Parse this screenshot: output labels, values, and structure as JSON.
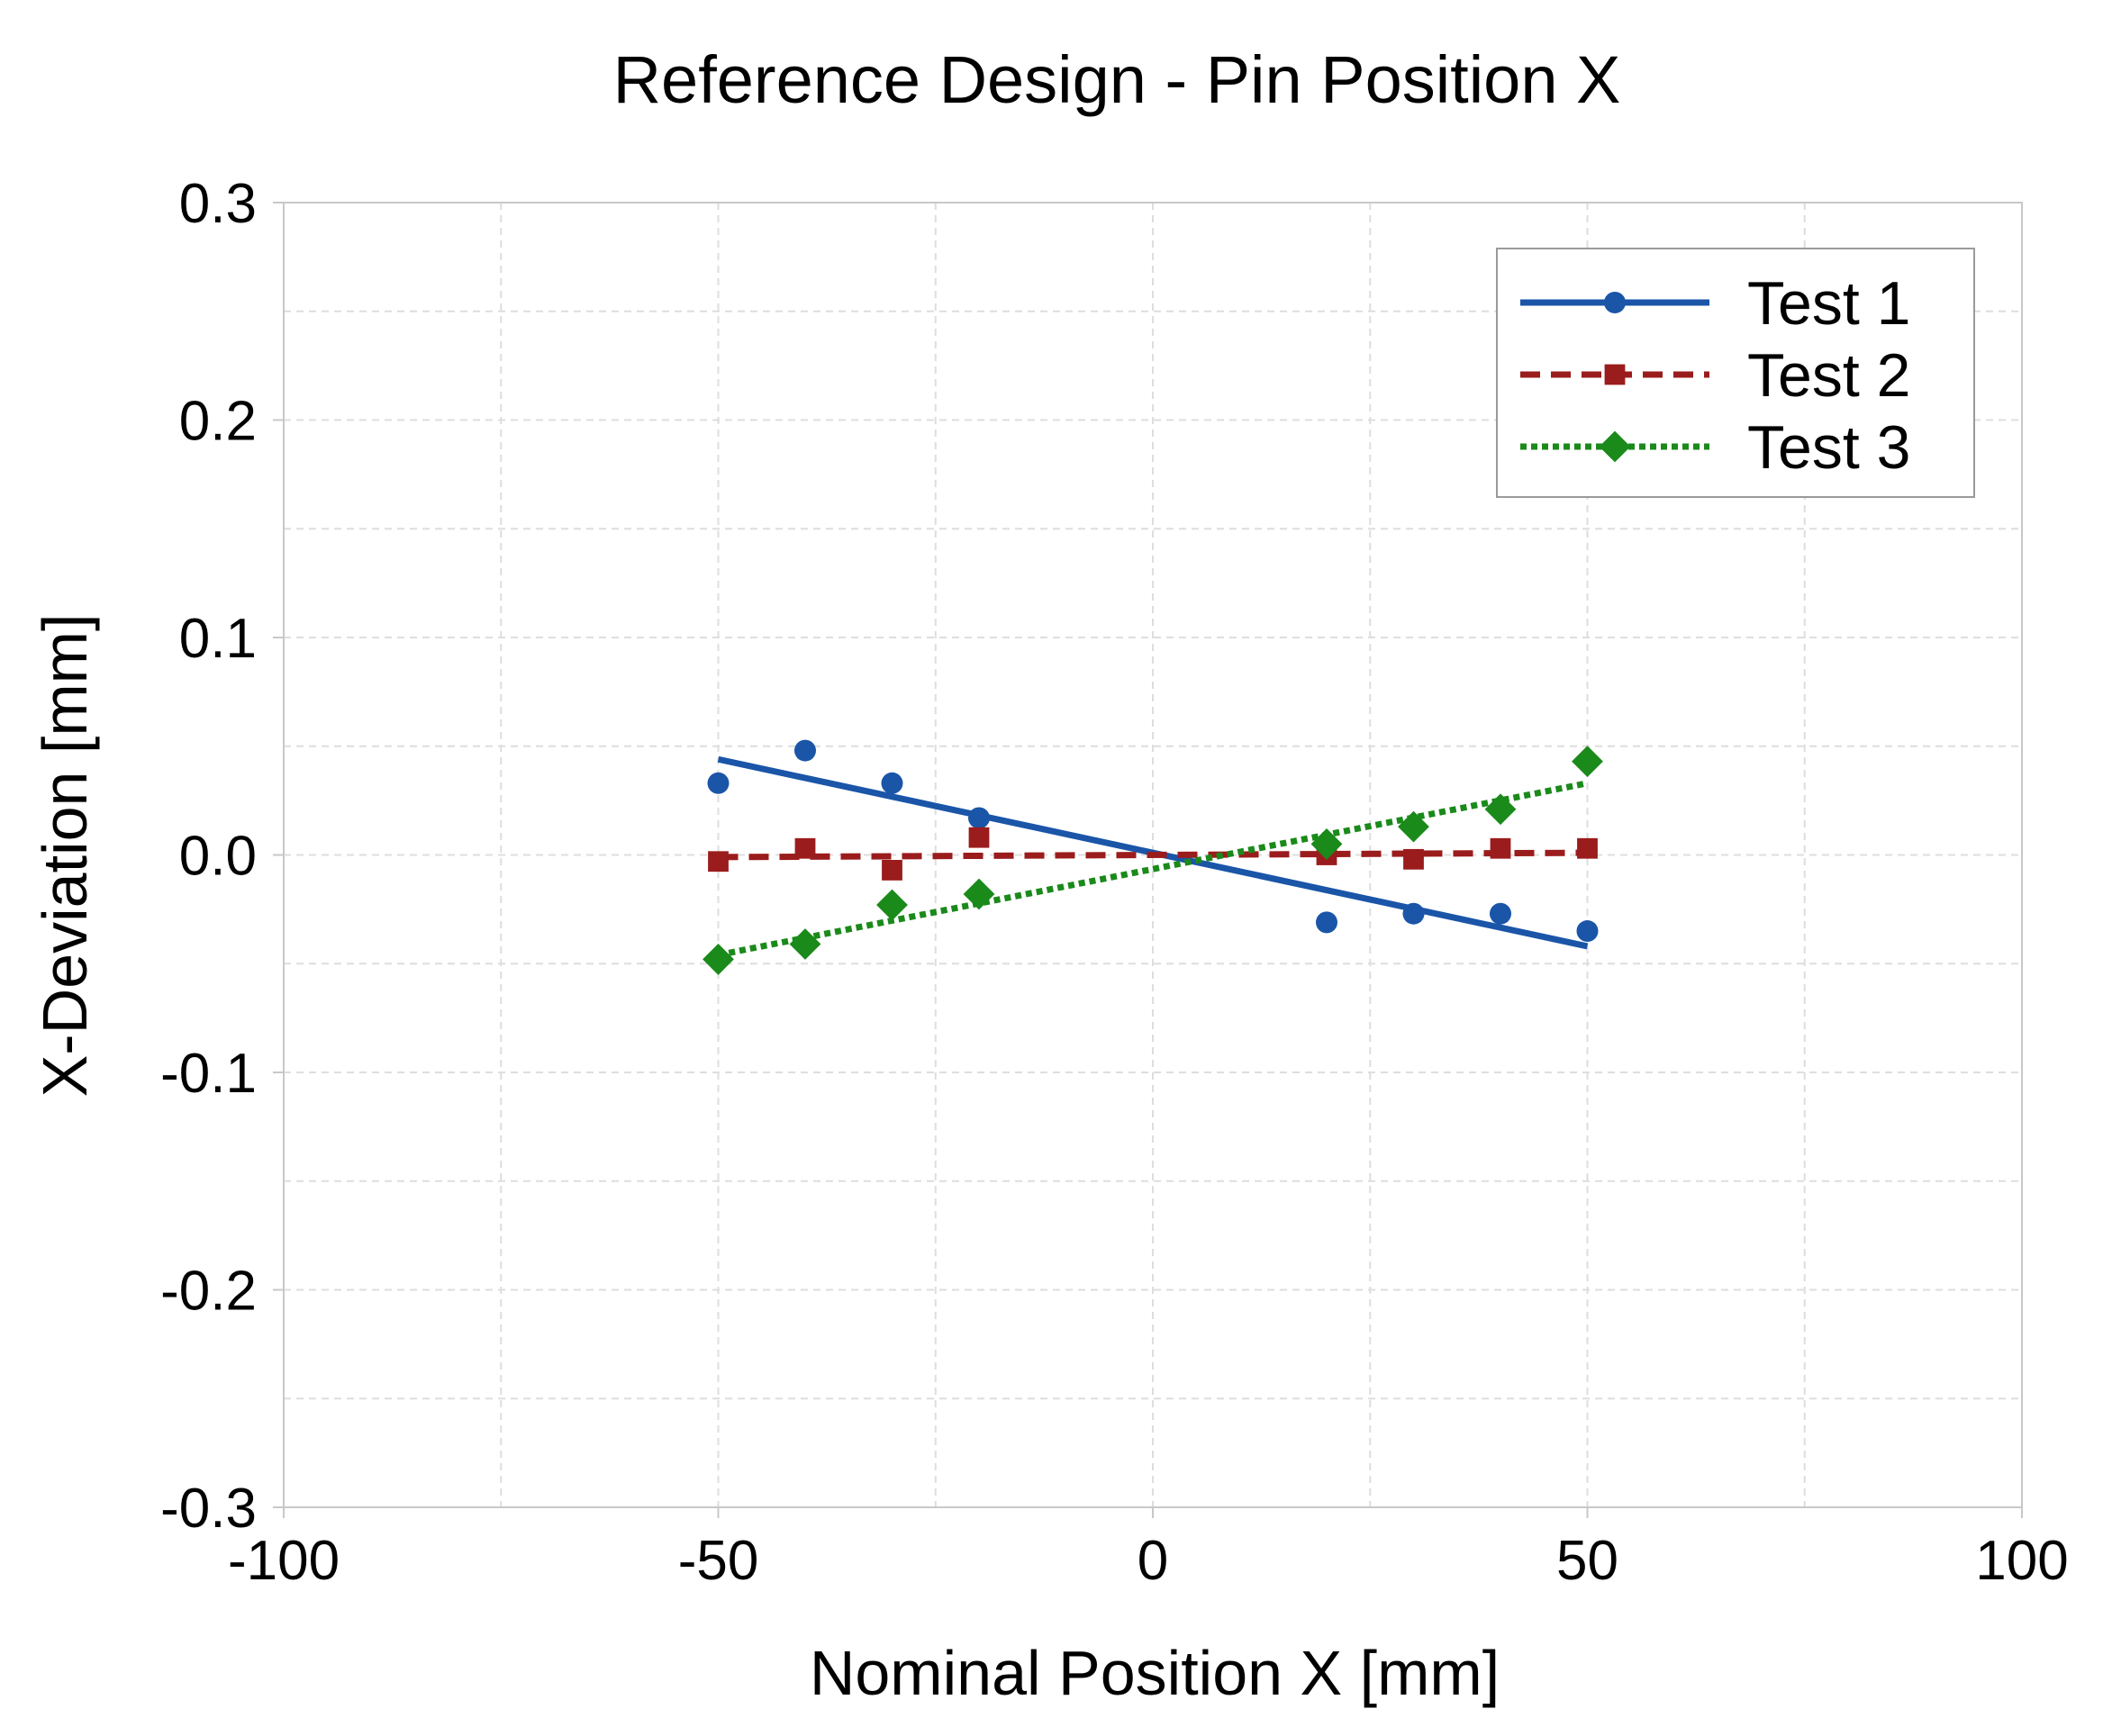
{
  "chart_data": {
    "type": "scatter",
    "title": "Reference Design - Pin Position X",
    "xlabel": "Nominal Position X [mm]",
    "ylabel": "X-Deviation [mm]",
    "xlim": [
      -100,
      100
    ],
    "ylim": [
      -0.3,
      0.3
    ],
    "x_ticks": [
      -100,
      -50,
      0,
      50,
      100
    ],
    "x_tick_labels": [
      "-100",
      "-50",
      "0",
      "50",
      "100"
    ],
    "y_ticks": [
      0.3,
      0.2,
      0.1,
      0.0,
      -0.1,
      -0.2,
      -0.3
    ],
    "y_tick_labels": [
      "0.3",
      "0.2",
      "0.1",
      "0.0",
      "-0.1",
      "-0.2",
      "-0.3"
    ],
    "grid": true,
    "legend_position": "top-right",
    "series": [
      {
        "name": "Test 1",
        "color": "#1a55a8",
        "marker": "circle",
        "line_style": "solid",
        "x": [
          -50,
          -40,
          -30,
          -20,
          20,
          30,
          40,
          50
        ],
        "y": [
          0.033,
          0.048,
          0.033,
          0.017,
          -0.031,
          -0.027,
          -0.027,
          -0.035
        ],
        "fit_line": {
          "x": [
            -50,
            50
          ],
          "y": [
            0.044,
            -0.042
          ]
        }
      },
      {
        "name": "Test 2",
        "color": "#9b1c1c",
        "marker": "square",
        "line_style": "dashed",
        "x": [
          -50,
          -40,
          -30,
          -20,
          20,
          30,
          40,
          50
        ],
        "y": [
          -0.003,
          0.003,
          -0.007,
          0.008,
          0.0,
          -0.002,
          0.003,
          0.003
        ],
        "fit_line": {
          "x": [
            -50,
            50
          ],
          "y": [
            -0.001,
            0.001
          ]
        }
      },
      {
        "name": "Test 3",
        "color": "#1a8a1a",
        "marker": "diamond",
        "line_style": "dotted",
        "x": [
          -50,
          -40,
          -30,
          -20,
          20,
          30,
          40,
          50
        ],
        "y": [
          -0.048,
          -0.041,
          -0.023,
          -0.018,
          0.005,
          0.013,
          0.021,
          0.043
        ],
        "fit_line": {
          "x": [
            -50,
            50
          ],
          "y": [
            -0.046,
            0.033
          ]
        }
      }
    ]
  }
}
